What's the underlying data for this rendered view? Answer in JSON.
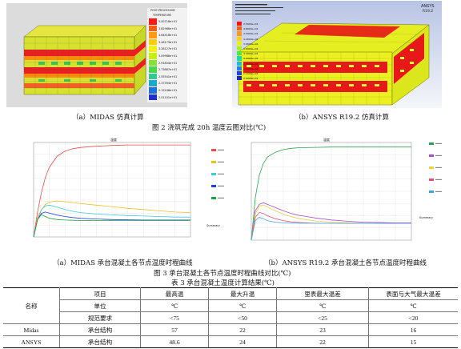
{
  "fig2": {
    "left_caption": "（a）MIDAS 仿真计算",
    "right_caption": "（b）ANSYS R19.2 仿真计算",
    "title": "图 2  浇筑完成 20h 温度云图对比(℃)",
    "midas_legend": {
      "header1": "POST-PROCESSOR",
      "header2": "TEMPERATURE",
      "values": [
        "5.00718e+01",
        "3.82966e+01",
        "3.64418e+01",
        "3.46173e+01",
        "3.28127e+01",
        "3.09988e+01",
        "2.91834e+01",
        "2.73687e+01",
        "2.55541e+01",
        "2.37394e+01",
        "2.15248e+01",
        "2.01101e+01"
      ],
      "colors": [
        "#ff1a1a",
        "#ff5a14",
        "#ff9a12",
        "#ffcc10",
        "#f4f010",
        "#c8ec18",
        "#88e030",
        "#4cd84a",
        "#30c890",
        "#20a8c8",
        "#2070e0",
        "#2030c8"
      ]
    },
    "ansys_legend": {
      "brand": "ANSYS",
      "version": "R19.2",
      "values": [
        "2.5000e+01",
        "4.8000e+01",
        "4.5000e+01",
        "4.2000e+01",
        "3.9000e+01",
        "3.6000e+01",
        "3.3000e+01",
        "3.0000e+01",
        "2.7000e+01",
        "2.4000e+01",
        "2.1000e+01",
        "2.0000e+01"
      ],
      "colors": [
        "#ff1010",
        "#ff6010",
        "#ff9a10",
        "#ffd010",
        "#e8f010",
        "#a8f020",
        "#50e840",
        "#20d8a0",
        "#20b8e0",
        "#2080f0",
        "#2040e0",
        "#1828b0"
      ]
    }
  },
  "fig3": {
    "left_caption": "（a）MIDAS 承台混凝土各节点温度时程曲线",
    "right_caption": "（b）ANSYS R19.2  承台混凝土各节点温度时程曲线",
    "title": "图 3  承台混凝土各节点温度时程曲线对比(℃)",
    "left_plot_title": "温度",
    "right_plot_title": "温度",
    "summary": "Summary"
  },
  "chart_data": [
    {
      "type": "line",
      "panel": "midas",
      "title": "温度",
      "xlabel": "",
      "ylabel": "",
      "ylim": [
        20,
        58
      ],
      "x": [
        0,
        5,
        10,
        15,
        20,
        30,
        40,
        50,
        60,
        80,
        100,
        120,
        140,
        160,
        180,
        200
      ],
      "series": [
        {
          "color": "#e05050",
          "values": [
            20,
            30,
            38,
            44,
            48,
            52.5,
            54.5,
            55.5,
            56,
            56.5,
            56.8,
            57,
            57,
            57,
            57,
            57
          ]
        },
        {
          "color": "#e8c020",
          "values": [
            20,
            28,
            31,
            33,
            34,
            34.5,
            34.2,
            33.8,
            33.4,
            32.8,
            32.2,
            31.5,
            31,
            30.5,
            30,
            29.8
          ]
        },
        {
          "color": "#40c8e0",
          "values": [
            20,
            27,
            31,
            32.5,
            32.8,
            32,
            31,
            30.3,
            29.8,
            29.2,
            28.9,
            28.6,
            28.4,
            28.2,
            28,
            28
          ]
        },
        {
          "color": "#2040d0",
          "values": [
            20,
            27,
            29.5,
            30,
            29.6,
            28.8,
            28.2,
            27.8,
            27.5,
            27.2,
            27,
            26.9,
            26.8,
            26.8,
            26.8,
            26.8
          ]
        },
        {
          "color": "#20a040",
          "values": [
            20,
            27,
            29,
            28.2,
            27.5,
            27,
            26.8,
            26.7,
            26.6,
            26.6,
            26.6,
            26.6,
            26.6,
            26.6,
            26.6,
            26.6
          ]
        }
      ]
    },
    {
      "type": "line",
      "panel": "ansys",
      "title": "温度",
      "xlabel": "",
      "ylabel": "",
      "ylim": [
        20,
        50
      ],
      "x": [
        0,
        5,
        10,
        15,
        20,
        30,
        40,
        50,
        60,
        80,
        100,
        120,
        140,
        160,
        180,
        200
      ],
      "series": [
        {
          "color": "#30a050",
          "values": [
            20,
            33,
            40,
            43.5,
            45.5,
            47,
            47.8,
            48.2,
            48.4,
            48.5,
            48.6,
            48.6,
            48.6,
            48.6,
            48.6,
            48.6
          ]
        },
        {
          "color": "#a050d0",
          "values": [
            20,
            29,
            31,
            31.5,
            31,
            30,
            29,
            28.2,
            27.6,
            26.8,
            26.2,
            25.8,
            25.5,
            25.4,
            25.3,
            25.3
          ]
        },
        {
          "color": "#e8d040",
          "values": [
            20,
            28,
            30.5,
            30.8,
            30.2,
            29,
            28,
            27.2,
            26.6,
            25.9,
            25.5,
            25.3,
            25.2,
            25.2,
            25.2,
            25.2
          ]
        },
        {
          "color": "#e05070",
          "values": [
            20,
            27,
            28.5,
            28.2,
            27.5,
            26.6,
            26,
            25.6,
            25.4,
            25.2,
            25.2,
            25.2,
            25.2,
            25.2,
            25.2,
            25.2
          ]
        },
        {
          "color": "#40a0e0",
          "values": [
            20,
            26,
            27,
            26.6,
            26,
            25.5,
            25.3,
            25.2,
            25.2,
            25.2,
            25.2,
            25.2,
            25.2,
            25.2,
            25.2,
            25.2
          ]
        }
      ]
    }
  ],
  "table": {
    "title": "表 3  承台混凝土温度计算结果(℃)",
    "name_header": "名称",
    "item_label": "项目",
    "unit_label": "单位",
    "spec_label": "规范要求",
    "columns": [
      "最高温",
      "最大升温",
      "里表最大温差",
      "表面与大气最大温差"
    ],
    "units": [
      "℃",
      "℃",
      "℃",
      "℃"
    ],
    "specs": [
      "<75",
      "<50",
      "<25",
      "<20"
    ],
    "rows": [
      {
        "name": "Midas",
        "item": "承台结构",
        "values": [
          "57",
          "22",
          "23",
          "16"
        ]
      },
      {
        "name": "ANSYS",
        "item": "承台结构",
        "values": [
          "48.6",
          "24",
          "22",
          "15"
        ]
      }
    ]
  }
}
